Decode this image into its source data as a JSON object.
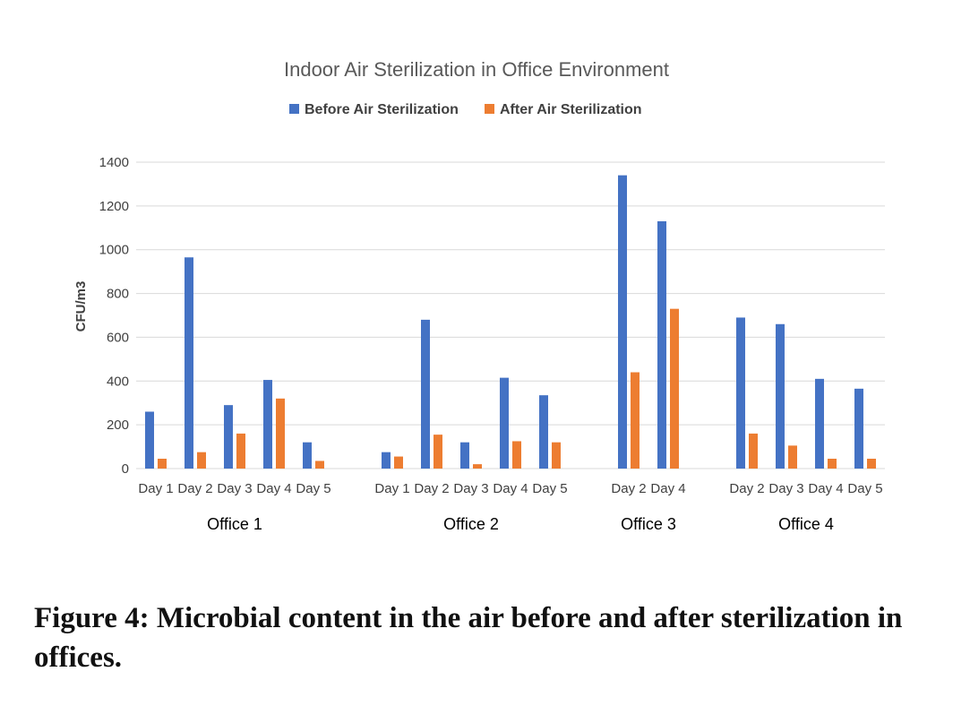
{
  "chart_data": {
    "type": "bar",
    "title": "Indoor Air Sterilization in Office Environment",
    "ylabel": "CFU/m3",
    "xlabel": "",
    "ylim": [
      0,
      1400
    ],
    "yticks": [
      0,
      200,
      400,
      600,
      800,
      1000,
      1200,
      1400
    ],
    "grid": true,
    "legend_position": "top",
    "colors": {
      "before": "#4472C4",
      "after": "#ED7D31",
      "grid": "#D9D9D9"
    },
    "series": [
      {
        "name": "Before Air Sterilization",
        "key": "before"
      },
      {
        "name": "After Air Sterilization",
        "key": "after"
      }
    ],
    "groups": [
      {
        "name": "Office 1",
        "categories": [
          {
            "label": "Day 1",
            "before": 260,
            "after": 45
          },
          {
            "label": "Day 2",
            "before": 965,
            "after": 75
          },
          {
            "label": "Day 3",
            "before": 290,
            "after": 160
          },
          {
            "label": "Day 4",
            "before": 405,
            "after": 320
          },
          {
            "label": "Day 5",
            "before": 120,
            "after": 35
          }
        ]
      },
      {
        "name": "Office 2",
        "categories": [
          {
            "label": "Day 1",
            "before": 75,
            "after": 55
          },
          {
            "label": "Day 2",
            "before": 680,
            "after": 155
          },
          {
            "label": "Day 3",
            "before": 120,
            "after": 20
          },
          {
            "label": "Day 4",
            "before": 415,
            "after": 125
          },
          {
            "label": "Day 5",
            "before": 335,
            "after": 120
          }
        ]
      },
      {
        "name": "Office 3",
        "categories": [
          {
            "label": "Day 2",
            "before": 1340,
            "after": 440
          },
          {
            "label": "Day 4",
            "before": 1130,
            "after": 730
          }
        ]
      },
      {
        "name": "Office 4",
        "categories": [
          {
            "label": "Day 2",
            "before": 690,
            "after": 160
          },
          {
            "label": "Day 3",
            "before": 660,
            "after": 105
          },
          {
            "label": "Day 4",
            "before": 410,
            "after": 45
          },
          {
            "label": "Day 5",
            "before": 365,
            "after": 45
          }
        ]
      }
    ]
  },
  "caption": "Figure 4: Microbial content in the air before and after sterilization in offices."
}
